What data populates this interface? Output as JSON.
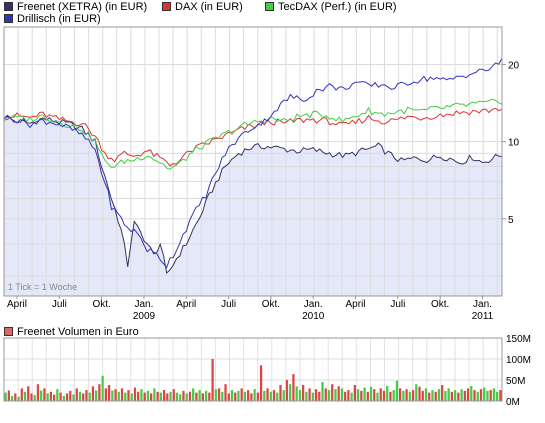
{
  "legend": [
    {
      "label": "Freenet (XETRA) (in EUR)",
      "color": "#333366"
    },
    {
      "label": "DAX (in EUR)",
      "color": "#dd3333"
    },
    {
      "label": "TecDAX (Perf.) (in EUR)",
      "color": "#44cc44"
    },
    {
      "label": "Drillisch (in EUR)",
      "color": "#3333bb"
    }
  ],
  "chart_data": [
    {
      "type": "line",
      "scale": "log",
      "note": "1 Tick = 1 Woche",
      "y_ticks": [
        5,
        10,
        20
      ],
      "ylim": [
        2.5,
        28
      ],
      "x_tick_labels": [
        "April",
        "Juli",
        "Okt.",
        "Jan.",
        "April",
        "Juli",
        "Okt.",
        "Jan.",
        "April",
        "Juli",
        "Okt.",
        "Jan."
      ],
      "x_tick_weeks": [
        4,
        17,
        30,
        43,
        56,
        69,
        82,
        95,
        108,
        121,
        134,
        147
      ],
      "year_labels": [
        {
          "label": "2009",
          "week": 43
        },
        {
          "label": "2010",
          "week": 95
        },
        {
          "label": "2011",
          "week": 147
        }
      ],
      "xlim_weeks": [
        0,
        153
      ],
      "grid": true,
      "series": [
        {
          "name": "Freenet (XETRA) (in EUR)",
          "color": "#333366",
          "keys": [
            [
              0,
              12.5
            ],
            [
              4,
              12.0
            ],
            [
              8,
              11.8
            ],
            [
              12,
              12.3
            ],
            [
              16,
              12.0
            ],
            [
              20,
              11.7
            ],
            [
              24,
              11.2
            ],
            [
              28,
              10.0
            ],
            [
              30,
              8.0
            ],
            [
              33,
              6.0
            ],
            [
              36,
              4.5
            ],
            [
              38,
              3.3
            ],
            [
              40,
              4.8
            ],
            [
              43,
              4.2
            ],
            [
              46,
              3.6
            ],
            [
              48,
              4.0
            ],
            [
              50,
              3.0
            ],
            [
              53,
              3.5
            ],
            [
              56,
              4.0
            ],
            [
              60,
              5.0
            ],
            [
              64,
              6.5
            ],
            [
              68,
              8.0
            ],
            [
              72,
              9.0
            ],
            [
              76,
              9.5
            ],
            [
              80,
              9.6
            ],
            [
              85,
              9.4
            ],
            [
              90,
              9.2
            ],
            [
              95,
              9.3
            ],
            [
              100,
              9.0
            ],
            [
              105,
              8.8
            ],
            [
              110,
              9.2
            ],
            [
              115,
              9.6
            ],
            [
              118,
              9.0
            ],
            [
              122,
              8.4
            ],
            [
              126,
              8.6
            ],
            [
              130,
              8.5
            ],
            [
              134,
              8.8
            ],
            [
              137,
              8.6
            ],
            [
              140,
              8.3
            ],
            [
              144,
              8.7
            ],
            [
              147,
              8.3
            ],
            [
              150,
              8.6
            ],
            [
              153,
              8.9
            ]
          ]
        },
        {
          "name": "DAX (in EUR)",
          "color": "#dd3333",
          "keys": [
            [
              0,
              12.5
            ],
            [
              4,
              12.6
            ],
            [
              8,
              12.4
            ],
            [
              12,
              12.8
            ],
            [
              16,
              12.3
            ],
            [
              20,
              12.0
            ],
            [
              24,
              11.8
            ],
            [
              28,
              10.5
            ],
            [
              31,
              9.0
            ],
            [
              34,
              8.5
            ],
            [
              37,
              9.0
            ],
            [
              40,
              8.8
            ],
            [
              44,
              9.2
            ],
            [
              48,
              8.6
            ],
            [
              51,
              8.1
            ],
            [
              54,
              8.5
            ],
            [
              58,
              9.3
            ],
            [
              62,
              9.8
            ],
            [
              66,
              10.3
            ],
            [
              70,
              10.8
            ],
            [
              74,
              11.3
            ],
            [
              78,
              11.6
            ],
            [
              82,
              12.0
            ],
            [
              86,
              11.8
            ],
            [
              90,
              12.1
            ],
            [
              95,
              12.2
            ],
            [
              100,
              12.0
            ],
            [
              104,
              11.5
            ],
            [
              108,
              11.9
            ],
            [
              112,
              12.4
            ],
            [
              116,
              12.0
            ],
            [
              120,
              12.1
            ],
            [
              124,
              12.5
            ],
            [
              128,
              12.4
            ],
            [
              132,
              12.6
            ],
            [
              136,
              12.8
            ],
            [
              140,
              13.0
            ],
            [
              144,
              13.1
            ],
            [
              148,
              13.2
            ],
            [
              153,
              13.5
            ]
          ]
        },
        {
          "name": "TecDAX (Perf.) (in EUR)",
          "color": "#44cc44",
          "keys": [
            [
              0,
              12.5
            ],
            [
              4,
              12.4
            ],
            [
              8,
              12.2
            ],
            [
              12,
              12.6
            ],
            [
              16,
              12.1
            ],
            [
              20,
              11.6
            ],
            [
              24,
              11.2
            ],
            [
              28,
              10.0
            ],
            [
              31,
              8.3
            ],
            [
              34,
              8.0
            ],
            [
              37,
              8.4
            ],
            [
              40,
              8.5
            ],
            [
              44,
              8.9
            ],
            [
              48,
              8.3
            ],
            [
              51,
              7.8
            ],
            [
              54,
              8.2
            ],
            [
              58,
              9.1
            ],
            [
              62,
              9.8
            ],
            [
              66,
              10.4
            ],
            [
              70,
              11.0
            ],
            [
              74,
              11.6
            ],
            [
              78,
              12.0
            ],
            [
              82,
              12.3
            ],
            [
              86,
              12.0
            ],
            [
              90,
              12.5
            ],
            [
              95,
              12.8
            ],
            [
              100,
              12.6
            ],
            [
              104,
              12.0
            ],
            [
              108,
              12.6
            ],
            [
              112,
              13.2
            ],
            [
              116,
              12.8
            ],
            [
              120,
              13.0
            ],
            [
              124,
              13.3
            ],
            [
              128,
              13.1
            ],
            [
              132,
              13.4
            ],
            [
              136,
              13.6
            ],
            [
              140,
              13.8
            ],
            [
              144,
              14.0
            ],
            [
              148,
              14.1
            ],
            [
              153,
              14.4
            ]
          ]
        },
        {
          "name": "Drillisch (in EUR)",
          "color": "#3333bb",
          "keys": [
            [
              0,
              12.5
            ],
            [
              4,
              12.2
            ],
            [
              8,
              11.7
            ],
            [
              12,
              12.1
            ],
            [
              16,
              11.8
            ],
            [
              20,
              11.3
            ],
            [
              24,
              10.6
            ],
            [
              28,
              9.3
            ],
            [
              30,
              7.6
            ],
            [
              33,
              5.6
            ],
            [
              36,
              5.0
            ],
            [
              38,
              4.6
            ],
            [
              41,
              4.4
            ],
            [
              44,
              3.8
            ],
            [
              47,
              3.6
            ],
            [
              50,
              3.3
            ],
            [
              53,
              3.8
            ],
            [
              56,
              4.6
            ],
            [
              59,
              5.4
            ],
            [
              62,
              6.2
            ],
            [
              65,
              7.5
            ],
            [
              68,
              9.0
            ],
            [
              72,
              10.3
            ],
            [
              76,
              11.3
            ],
            [
              80,
              12.0
            ],
            [
              84,
              13.5
            ],
            [
              88,
              15.0
            ],
            [
              92,
              14.5
            ],
            [
              96,
              15.8
            ],
            [
              100,
              16.5
            ],
            [
              104,
              16.0
            ],
            [
              108,
              17.0
            ],
            [
              112,
              16.5
            ],
            [
              116,
              16.7
            ],
            [
              120,
              16.2
            ],
            [
              124,
              17.0
            ],
            [
              128,
              17.5
            ],
            [
              132,
              17.8
            ],
            [
              136,
              17.2
            ],
            [
              140,
              18.0
            ],
            [
              144,
              18.5
            ],
            [
              148,
              19.0
            ],
            [
              151,
              19.8
            ],
            [
              153,
              20.8
            ]
          ]
        }
      ]
    },
    {
      "type": "bar",
      "title": "Freenet Volumen in Euro",
      "y_ticks": [
        {
          "value": 0,
          "label": "0M"
        },
        {
          "value": 50,
          "label": "50M"
        },
        {
          "value": 100,
          "label": "100M"
        },
        {
          "value": 150,
          "label": "150M"
        }
      ],
      "ylim": [
        0,
        150
      ],
      "colors": {
        "up": "#44cc44",
        "down": "#dd4444"
      },
      "values": [
        20,
        25,
        12,
        18,
        10,
        30,
        22,
        35,
        18,
        14,
        40,
        25,
        30,
        18,
        22,
        15,
        28,
        20,
        12,
        18,
        24,
        16,
        30,
        22,
        18,
        26,
        20,
        35,
        25,
        40,
        60,
        30,
        38,
        25,
        28,
        22,
        30,
        20,
        26,
        18,
        32,
        22,
        28,
        20,
        24,
        18,
        30,
        22,
        20,
        26,
        18,
        22,
        28,
        20,
        16,
        24,
        18,
        22,
        30,
        20,
        26,
        18,
        24,
        20,
        100,
        28,
        30,
        22,
        40,
        18,
        26,
        20,
        24,
        30,
        22,
        26,
        18,
        28,
        20,
        85,
        24,
        30,
        22,
        26,
        20,
        38,
        26,
        50,
        40,
        64,
        35,
        26,
        38,
        22,
        30,
        20,
        28,
        22,
        45,
        30,
        26,
        40,
        28,
        35,
        30,
        22,
        26,
        20,
        38,
        28,
        24,
        32,
        22,
        34,
        28,
        20,
        30,
        24,
        36,
        22,
        26,
        48,
        30,
        24,
        28,
        22,
        26,
        40,
        34,
        24,
        30,
        20,
        26,
        22,
        28,
        38,
        24,
        30,
        22,
        26,
        20,
        28,
        24,
        30,
        36,
        26,
        22,
        28,
        32,
        24,
        26,
        30,
        22,
        26
      ],
      "up": [
        true,
        false,
        true,
        false,
        true,
        false,
        true,
        false,
        false,
        true,
        false,
        true,
        false,
        true,
        false,
        false,
        true,
        false,
        true,
        false,
        false,
        true,
        false,
        true,
        false,
        false,
        true,
        false,
        true,
        false,
        true,
        false,
        false,
        true,
        false,
        true,
        false,
        true,
        false,
        true,
        false,
        false,
        true,
        false,
        true,
        false,
        true,
        false,
        true,
        false,
        false,
        true,
        false,
        true,
        true,
        false,
        true,
        false,
        true,
        false,
        true,
        false,
        true,
        false,
        false,
        true,
        false,
        true,
        false,
        false,
        true,
        false,
        true,
        false,
        true,
        false,
        false,
        true,
        false,
        false,
        true,
        false,
        true,
        false,
        true,
        false,
        true,
        false,
        true,
        false,
        true,
        true,
        false,
        true,
        false,
        true,
        false,
        false,
        true,
        false,
        true,
        false,
        true,
        false,
        true,
        false,
        false,
        true,
        false,
        true,
        false,
        true,
        false,
        true,
        false,
        true,
        false,
        false,
        true,
        false,
        true,
        true,
        false,
        true,
        false,
        true,
        false,
        true,
        false,
        false,
        true,
        false,
        true,
        false,
        true,
        false,
        true,
        true,
        false,
        true,
        false,
        true,
        false,
        false,
        true,
        false,
        true,
        false,
        true,
        true,
        false,
        true,
        true,
        false
      ]
    }
  ]
}
